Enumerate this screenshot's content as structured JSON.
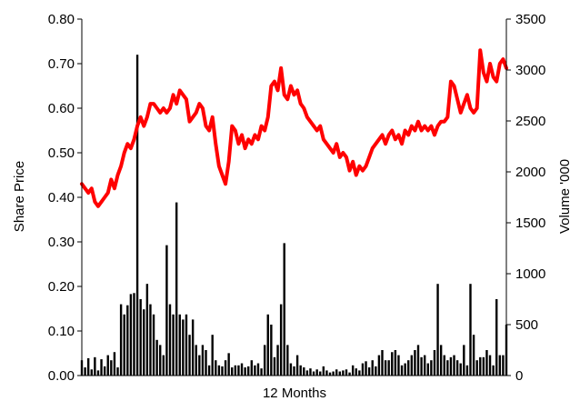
{
  "chart_data": {
    "type": "line+bar",
    "title": "",
    "xlabel": "12 Months",
    "ylabel_left": "Share Price",
    "ylabel_right": "Volume '000",
    "ylim_left": [
      0,
      0.8
    ],
    "ylim_right": [
      0,
      3500
    ],
    "yticks_left": [
      "0.00",
      "0.10",
      "0.20",
      "0.30",
      "0.40",
      "0.50",
      "0.60",
      "0.70",
      "0.80"
    ],
    "yticks_right": [
      "0",
      "500",
      "1000",
      "1500",
      "2000",
      "2500",
      "3000",
      "3500"
    ],
    "grid": false,
    "legend": "none",
    "x_range": [
      0,
      260
    ],
    "series": [
      {
        "axis": "left",
        "kind": "line",
        "color": "#ff0000",
        "points": [
          [
            0,
            0.43
          ],
          [
            2,
            0.42
          ],
          [
            4,
            0.41
          ],
          [
            6,
            0.42
          ],
          [
            8,
            0.39
          ],
          [
            10,
            0.38
          ],
          [
            12,
            0.39
          ],
          [
            14,
            0.4
          ],
          [
            16,
            0.41
          ],
          [
            18,
            0.44
          ],
          [
            20,
            0.42
          ],
          [
            22,
            0.45
          ],
          [
            24,
            0.47
          ],
          [
            26,
            0.5
          ],
          [
            28,
            0.52
          ],
          [
            30,
            0.51
          ],
          [
            32,
            0.53
          ],
          [
            34,
            0.56
          ],
          [
            36,
            0.58
          ],
          [
            38,
            0.56
          ],
          [
            40,
            0.58
          ],
          [
            42,
            0.61
          ],
          [
            44,
            0.61
          ],
          [
            46,
            0.6
          ],
          [
            48,
            0.59
          ],
          [
            50,
            0.6
          ],
          [
            52,
            0.59
          ],
          [
            54,
            0.6
          ],
          [
            56,
            0.63
          ],
          [
            58,
            0.61
          ],
          [
            60,
            0.64
          ],
          [
            62,
            0.63
          ],
          [
            64,
            0.62
          ],
          [
            66,
            0.57
          ],
          [
            68,
            0.58
          ],
          [
            70,
            0.59
          ],
          [
            72,
            0.61
          ],
          [
            74,
            0.6
          ],
          [
            76,
            0.56
          ],
          [
            78,
            0.55
          ],
          [
            80,
            0.58
          ],
          [
            82,
            0.52
          ],
          [
            84,
            0.47
          ],
          [
            86,
            0.45
          ],
          [
            88,
            0.43
          ],
          [
            90,
            0.48
          ],
          [
            92,
            0.56
          ],
          [
            94,
            0.55
          ],
          [
            96,
            0.52
          ],
          [
            98,
            0.54
          ],
          [
            100,
            0.51
          ],
          [
            102,
            0.53
          ],
          [
            104,
            0.52
          ],
          [
            106,
            0.54
          ],
          [
            108,
            0.53
          ],
          [
            110,
            0.56
          ],
          [
            112,
            0.55
          ],
          [
            114,
            0.58
          ],
          [
            116,
            0.65
          ],
          [
            118,
            0.66
          ],
          [
            120,
            0.64
          ],
          [
            122,
            0.69
          ],
          [
            124,
            0.63
          ],
          [
            126,
            0.62
          ],
          [
            128,
            0.65
          ],
          [
            130,
            0.63
          ],
          [
            132,
            0.64
          ],
          [
            134,
            0.61
          ],
          [
            136,
            0.6
          ],
          [
            138,
            0.58
          ],
          [
            140,
            0.57
          ],
          [
            142,
            0.56
          ],
          [
            144,
            0.55
          ],
          [
            146,
            0.56
          ],
          [
            148,
            0.53
          ],
          [
            150,
            0.52
          ],
          [
            152,
            0.51
          ],
          [
            154,
            0.5
          ],
          [
            156,
            0.52
          ],
          [
            158,
            0.49
          ],
          [
            160,
            0.5
          ],
          [
            162,
            0.49
          ],
          [
            164,
            0.46
          ],
          [
            166,
            0.48
          ],
          [
            168,
            0.45
          ],
          [
            170,
            0.47
          ],
          [
            172,
            0.46
          ],
          [
            174,
            0.47
          ],
          [
            176,
            0.49
          ],
          [
            178,
            0.51
          ],
          [
            180,
            0.52
          ],
          [
            182,
            0.53
          ],
          [
            184,
            0.54
          ],
          [
            186,
            0.52
          ],
          [
            188,
            0.54
          ],
          [
            190,
            0.55
          ],
          [
            192,
            0.53
          ],
          [
            194,
            0.54
          ],
          [
            196,
            0.52
          ],
          [
            198,
            0.55
          ],
          [
            200,
            0.54
          ],
          [
            202,
            0.56
          ],
          [
            204,
            0.55
          ],
          [
            206,
            0.57
          ],
          [
            208,
            0.55
          ],
          [
            210,
            0.56
          ],
          [
            212,
            0.55
          ],
          [
            214,
            0.56
          ],
          [
            216,
            0.54
          ],
          [
            218,
            0.56
          ],
          [
            220,
            0.57
          ],
          [
            222,
            0.57
          ],
          [
            224,
            0.58
          ],
          [
            226,
            0.66
          ],
          [
            228,
            0.65
          ],
          [
            230,
            0.62
          ],
          [
            232,
            0.59
          ],
          [
            234,
            0.61
          ],
          [
            236,
            0.63
          ],
          [
            238,
            0.6
          ],
          [
            240,
            0.59
          ],
          [
            242,
            0.6
          ],
          [
            244,
            0.73
          ],
          [
            246,
            0.68
          ],
          [
            248,
            0.66
          ],
          [
            250,
            0.7
          ],
          [
            252,
            0.67
          ],
          [
            254,
            0.66
          ],
          [
            256,
            0.7
          ],
          [
            258,
            0.71
          ],
          [
            260,
            0.69
          ]
        ]
      },
      {
        "axis": "right",
        "kind": "bar",
        "color": "#000000",
        "points": [
          [
            0,
            150
          ],
          [
            2,
            80
          ],
          [
            4,
            170
          ],
          [
            6,
            60
          ],
          [
            8,
            180
          ],
          [
            10,
            50
          ],
          [
            12,
            160
          ],
          [
            14,
            90
          ],
          [
            16,
            200
          ],
          [
            18,
            150
          ],
          [
            20,
            230
          ],
          [
            22,
            80
          ],
          [
            24,
            700
          ],
          [
            26,
            600
          ],
          [
            28,
            690
          ],
          [
            30,
            800
          ],
          [
            32,
            810
          ],
          [
            34,
            3150
          ],
          [
            36,
            750
          ],
          [
            38,
            650
          ],
          [
            40,
            900
          ],
          [
            42,
            700
          ],
          [
            44,
            600
          ],
          [
            46,
            350
          ],
          [
            48,
            300
          ],
          [
            50,
            200
          ],
          [
            52,
            1280
          ],
          [
            54,
            700
          ],
          [
            56,
            600
          ],
          [
            58,
            1700
          ],
          [
            60,
            600
          ],
          [
            62,
            550
          ],
          [
            64,
            600
          ],
          [
            66,
            400
          ],
          [
            68,
            550
          ],
          [
            70,
            300
          ],
          [
            72,
            200
          ],
          [
            74,
            300
          ],
          [
            76,
            250
          ],
          [
            78,
            100
          ],
          [
            80,
            400
          ],
          [
            82,
            150
          ],
          [
            84,
            100
          ],
          [
            86,
            90
          ],
          [
            88,
            150
          ],
          [
            90,
            220
          ],
          [
            92,
            80
          ],
          [
            94,
            100
          ],
          [
            96,
            100
          ],
          [
            98,
            120
          ],
          [
            100,
            80
          ],
          [
            102,
            90
          ],
          [
            104,
            150
          ],
          [
            106,
            100
          ],
          [
            108,
            120
          ],
          [
            110,
            70
          ],
          [
            112,
            300
          ],
          [
            114,
            600
          ],
          [
            116,
            500
          ],
          [
            118,
            180
          ],
          [
            120,
            300
          ],
          [
            122,
            700
          ],
          [
            124,
            1300
          ],
          [
            126,
            300
          ],
          [
            128,
            120
          ],
          [
            130,
            90
          ],
          [
            132,
            200
          ],
          [
            134,
            100
          ],
          [
            136,
            80
          ],
          [
            138,
            50
          ],
          [
            140,
            70
          ],
          [
            142,
            40
          ],
          [
            144,
            60
          ],
          [
            146,
            40
          ],
          [
            148,
            90
          ],
          [
            150,
            50
          ],
          [
            152,
            30
          ],
          [
            154,
            40
          ],
          [
            156,
            60
          ],
          [
            158,
            40
          ],
          [
            160,
            50
          ],
          [
            162,
            60
          ],
          [
            164,
            30
          ],
          [
            166,
            100
          ],
          [
            168,
            70
          ],
          [
            170,
            50
          ],
          [
            172,
            120
          ],
          [
            174,
            140
          ],
          [
            176,
            80
          ],
          [
            178,
            150
          ],
          [
            180,
            90
          ],
          [
            182,
            200
          ],
          [
            184,
            250
          ],
          [
            186,
            150
          ],
          [
            188,
            150
          ],
          [
            190,
            230
          ],
          [
            192,
            250
          ],
          [
            194,
            200
          ],
          [
            196,
            100
          ],
          [
            198,
            120
          ],
          [
            200,
            150
          ],
          [
            202,
            200
          ],
          [
            204,
            250
          ],
          [
            206,
            300
          ],
          [
            208,
            180
          ],
          [
            210,
            200
          ],
          [
            212,
            120
          ],
          [
            214,
            150
          ],
          [
            216,
            250
          ],
          [
            218,
            900
          ],
          [
            220,
            300
          ],
          [
            222,
            200
          ],
          [
            224,
            150
          ],
          [
            226,
            180
          ],
          [
            228,
            200
          ],
          [
            230,
            150
          ],
          [
            232,
            120
          ],
          [
            234,
            300
          ],
          [
            236,
            100
          ],
          [
            238,
            900
          ],
          [
            240,
            400
          ],
          [
            242,
            150
          ],
          [
            244,
            180
          ],
          [
            246,
            180
          ],
          [
            248,
            250
          ],
          [
            250,
            200
          ],
          [
            252,
            100
          ],
          [
            254,
            750
          ],
          [
            256,
            200
          ],
          [
            258,
            200
          ],
          [
            260,
            500
          ]
        ]
      }
    ]
  }
}
